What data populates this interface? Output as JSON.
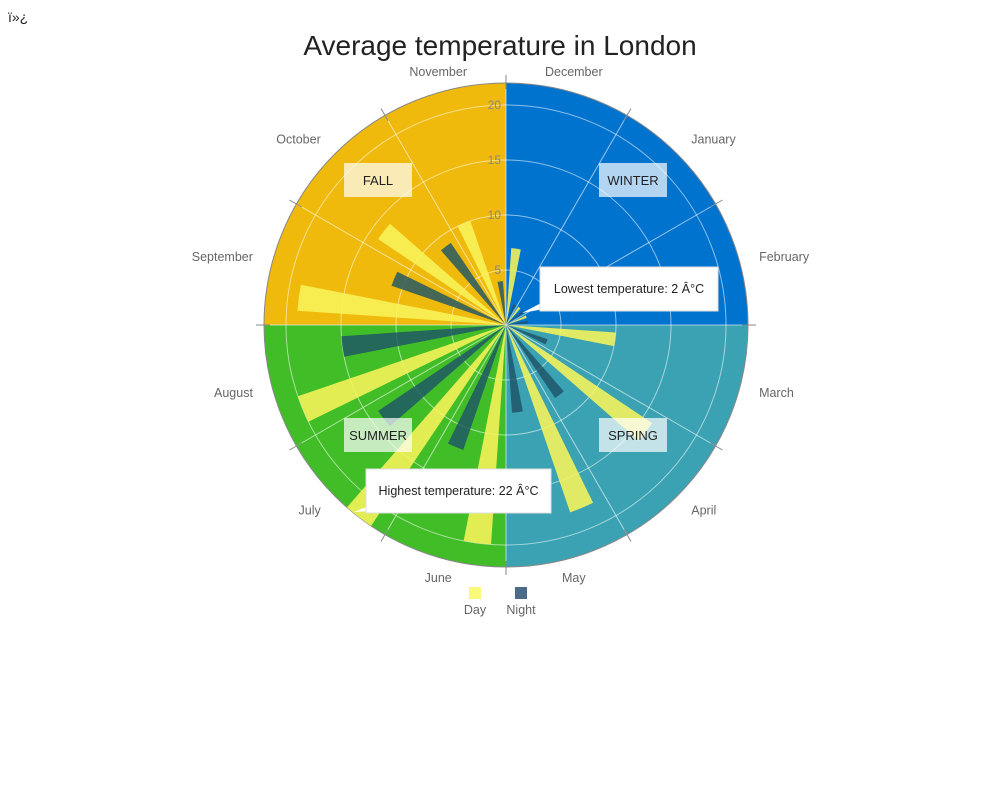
{
  "header": {
    "bom": "ï»¿"
  },
  "chart_data": {
    "type": "polar-bar",
    "title": "Average temperature in London",
    "months": [
      "December",
      "January",
      "February",
      "March",
      "April",
      "May",
      "June",
      "July",
      "August",
      "September",
      "October",
      "November"
    ],
    "rlim": [
      0,
      22
    ],
    "rticks": [
      5,
      10,
      15,
      20
    ],
    "seasons": [
      {
        "label": "WINTER",
        "color": "#0073CF"
      },
      {
        "label": "SPRING",
        "color": "#3AA2B2"
      },
      {
        "label": "SUMMER",
        "color": "#41BD27"
      },
      {
        "label": "FALL",
        "color": "#EFBA0B"
      }
    ],
    "series": [
      {
        "name": "Day",
        "color": "#F8F45A",
        "values": [
          7,
          2,
          2,
          10,
          16,
          18,
          20,
          22,
          20,
          19,
          14,
          10
        ]
      },
      {
        "name": "Night",
        "color": "#1E5467",
        "values": [
          2,
          2,
          2,
          4,
          8,
          8,
          12,
          14,
          15,
          11,
          9,
          4
        ]
      }
    ],
    "annotations": [
      {
        "text": "Lowest temperature: 2 Â°C"
      },
      {
        "text": "Highest temperature: 22 Â°C"
      }
    ]
  }
}
